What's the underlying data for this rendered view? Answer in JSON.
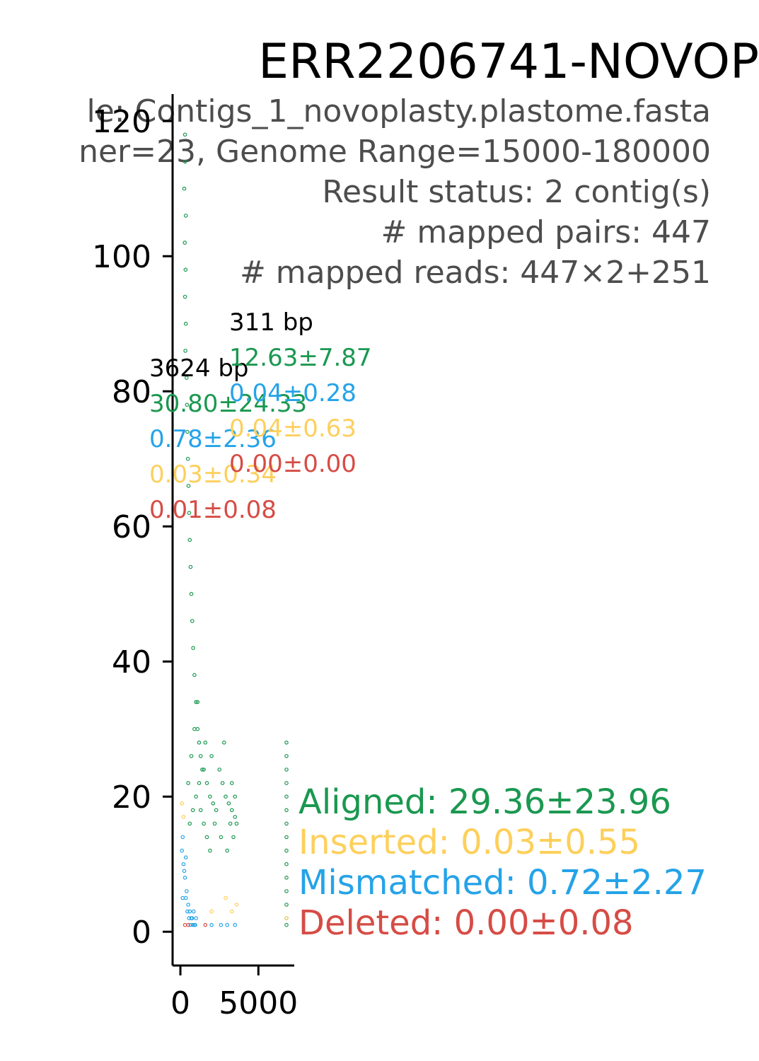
{
  "chart_data": {
    "type": "scatter",
    "title": "ERR2206741-NOVOP",
    "subtitle_lines": [
      "le: Contigs_1_novoplasty.plastome.fasta",
      "ner=23, Genome Range=15000-180000",
      "Result status: 2 contig(s)",
      "# mapped pairs: 447",
      "# mapped reads: 447×2+251"
    ],
    "xlabel": "",
    "ylabel": "",
    "xlim": [
      -500,
      7300
    ],
    "ylim": [
      -5,
      124
    ],
    "x_ticks": [
      0,
      5000
    ],
    "y_ticks": [
      0,
      20,
      40,
      60,
      80,
      100,
      120
    ],
    "grid": false,
    "colors": {
      "aligned": "#1a9850",
      "inserted": "#fdd05c",
      "mismatched": "#25a3e8",
      "deleted": "#d64c45"
    },
    "contigs": [
      {
        "length_label": "3624 bp",
        "length": 3624,
        "aligned": "30.80±24.33",
        "mismatched": "0.78±2.36",
        "inserted": "0.03±0.34",
        "deleted": "0.01±0.08"
      },
      {
        "length_label": "311 bp",
        "length": 311,
        "aligned": "12.63±7.87",
        "mismatched": "0.04±0.28",
        "inserted": "0.04±0.63",
        "deleted": "0.00±0.00"
      }
    ],
    "legend": [
      {
        "key": "aligned",
        "label": "Aligned: 29.36±23.96"
      },
      {
        "key": "inserted",
        "label": "Inserted: 0.03±0.55"
      },
      {
        "key": "mismatched",
        "label": "Mismatched: 0.72±2.27"
      },
      {
        "key": "deleted",
        "label": "Deleted: 0.00±0.08"
      }
    ],
    "series": [
      {
        "name": "aligned",
        "points": [
          [
            300,
            118
          ],
          [
            300,
            114
          ],
          [
            250,
            110
          ],
          [
            350,
            106
          ],
          [
            280,
            102
          ],
          [
            330,
            98
          ],
          [
            300,
            94
          ],
          [
            350,
            90
          ],
          [
            320,
            86
          ],
          [
            400,
            82
          ],
          [
            420,
            78
          ],
          [
            450,
            74
          ],
          [
            480,
            70
          ],
          [
            520,
            66
          ],
          [
            560,
            62
          ],
          [
            600,
            58
          ],
          [
            650,
            54
          ],
          [
            700,
            50
          ],
          [
            760,
            46
          ],
          [
            820,
            42
          ],
          [
            900,
            38
          ],
          [
            1000,
            34
          ],
          [
            1100,
            30
          ],
          [
            1200,
            28
          ],
          [
            1300,
            26
          ],
          [
            1500,
            24
          ],
          [
            1700,
            22
          ],
          [
            1900,
            20
          ],
          [
            2100,
            19
          ],
          [
            2300,
            18
          ],
          [
            2500,
            24
          ],
          [
            2700,
            22
          ],
          [
            2900,
            20
          ],
          [
            3100,
            19
          ],
          [
            3300,
            18
          ],
          [
            3500,
            17
          ],
          [
            3600,
            16
          ],
          [
            2800,
            28
          ],
          [
            2000,
            26
          ],
          [
            1600,
            28
          ],
          [
            1400,
            24
          ],
          [
            1200,
            22
          ],
          [
            1000,
            20
          ],
          [
            800,
            18
          ],
          [
            600,
            16
          ],
          [
            500,
            22
          ],
          [
            700,
            26
          ],
          [
            900,
            30
          ],
          [
            1100,
            34
          ],
          [
            1300,
            18
          ],
          [
            1500,
            16
          ],
          [
            1700,
            14
          ],
          [
            1900,
            12
          ],
          [
            2200,
            16
          ],
          [
            2600,
            14
          ],
          [
            3000,
            12
          ],
          [
            3200,
            16
          ],
          [
            3400,
            14
          ],
          [
            3500,
            20
          ],
          [
            3300,
            22
          ],
          [
            6800,
            28
          ],
          [
            6800,
            24
          ],
          [
            6800,
            20
          ],
          [
            6800,
            16
          ],
          [
            6800,
            12
          ],
          [
            6800,
            8
          ],
          [
            6800,
            4
          ],
          [
            6800,
            1
          ],
          [
            6800,
            26
          ],
          [
            6800,
            22
          ],
          [
            6800,
            18
          ],
          [
            6800,
            14
          ],
          [
            6800,
            10
          ],
          [
            6800,
            6
          ],
          [
            6800,
            2
          ]
        ]
      },
      {
        "name": "mismatched",
        "points": [
          [
            100,
            12
          ],
          [
            200,
            10
          ],
          [
            300,
            8
          ],
          [
            400,
            6
          ],
          [
            500,
            4
          ],
          [
            600,
            3
          ],
          [
            700,
            2
          ],
          [
            800,
            1
          ],
          [
            900,
            1
          ],
          [
            1000,
            2
          ],
          [
            150,
            14
          ],
          [
            250,
            9
          ],
          [
            350,
            5
          ],
          [
            450,
            3
          ],
          [
            550,
            2
          ],
          [
            650,
            1
          ],
          [
            750,
            2
          ],
          [
            850,
            3
          ],
          [
            950,
            1
          ],
          [
            2000,
            1
          ],
          [
            2600,
            1
          ],
          [
            3000,
            1
          ],
          [
            3500,
            1
          ],
          [
            150,
            5
          ],
          [
            350,
            11
          ]
        ]
      },
      {
        "name": "inserted",
        "points": [
          [
            100,
            19
          ],
          [
            200,
            17
          ],
          [
            2000,
            3
          ],
          [
            2900,
            5
          ],
          [
            3300,
            3
          ],
          [
            3600,
            4
          ],
          [
            6800,
            2
          ]
        ]
      },
      {
        "name": "deleted",
        "points": [
          [
            300,
            1
          ],
          [
            500,
            1
          ],
          [
            1600,
            1
          ]
        ]
      }
    ]
  }
}
